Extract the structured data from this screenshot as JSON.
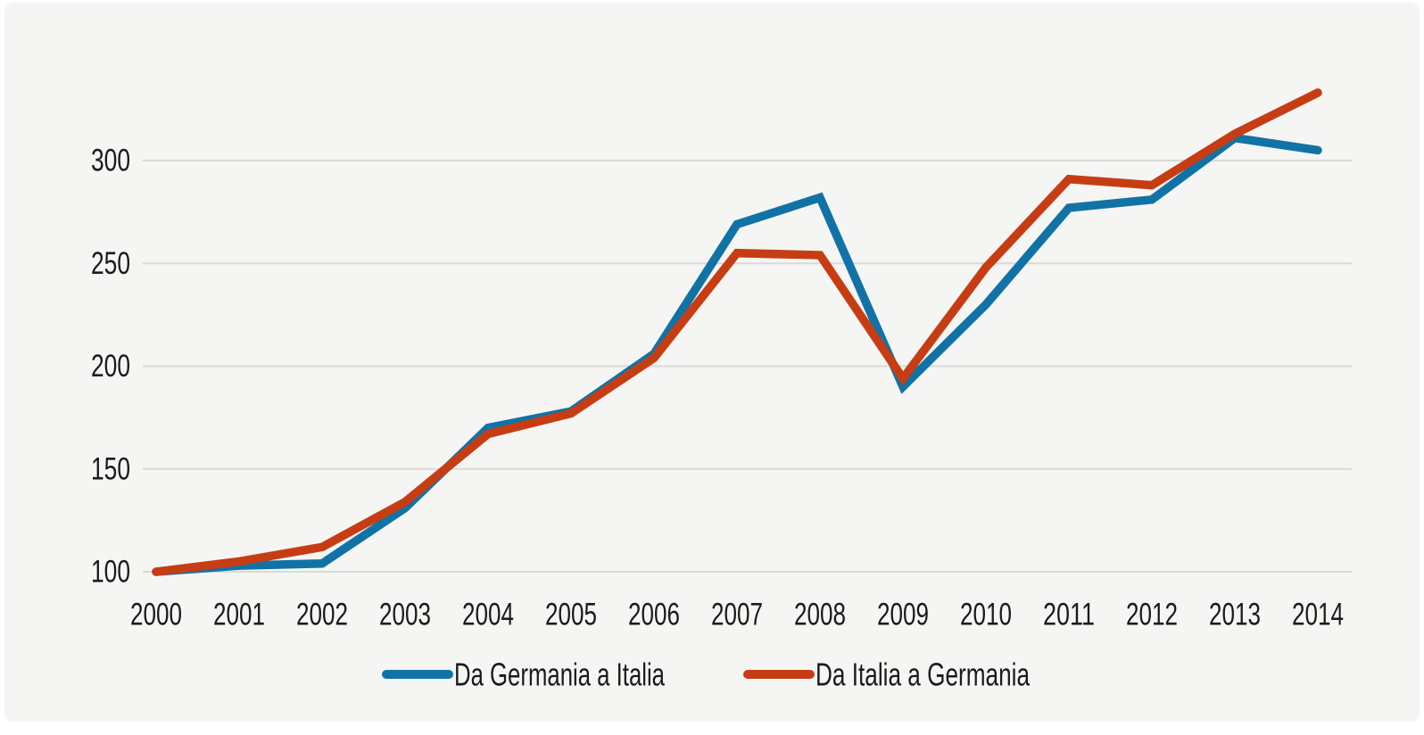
{
  "chart_data": {
    "type": "line",
    "title": "",
    "xlabel": "",
    "ylabel": "",
    "x": [
      2000,
      2001,
      2002,
      2003,
      2004,
      2005,
      2006,
      2007,
      2008,
      2009,
      2010,
      2011,
      2012,
      2013,
      2014
    ],
    "series": [
      {
        "name": "Da Germania a Italia",
        "color": "#1173a5",
        "values": [
          100,
          103,
          104,
          131,
          170,
          178,
          206,
          269,
          282,
          190,
          230,
          277,
          281,
          311,
          305
        ]
      },
      {
        "name": "Da Italia a Germania",
        "color": "#c73d13",
        "values": [
          100,
          105,
          112,
          134,
          167,
          177,
          204,
          255,
          254,
          194,
          248,
          291,
          288,
          313,
          333
        ]
      }
    ],
    "yticks": [
      100,
      150,
      200,
      250,
      300
    ],
    "ylim": [
      100,
      340
    ],
    "grid": "horizontal-only",
    "legend_position": "bottom-center",
    "colors": {
      "background": "#f5f5f4",
      "page_margin": "#ffffff",
      "gridline": "#d9d9d7",
      "text": "#1b1b1b"
    }
  }
}
